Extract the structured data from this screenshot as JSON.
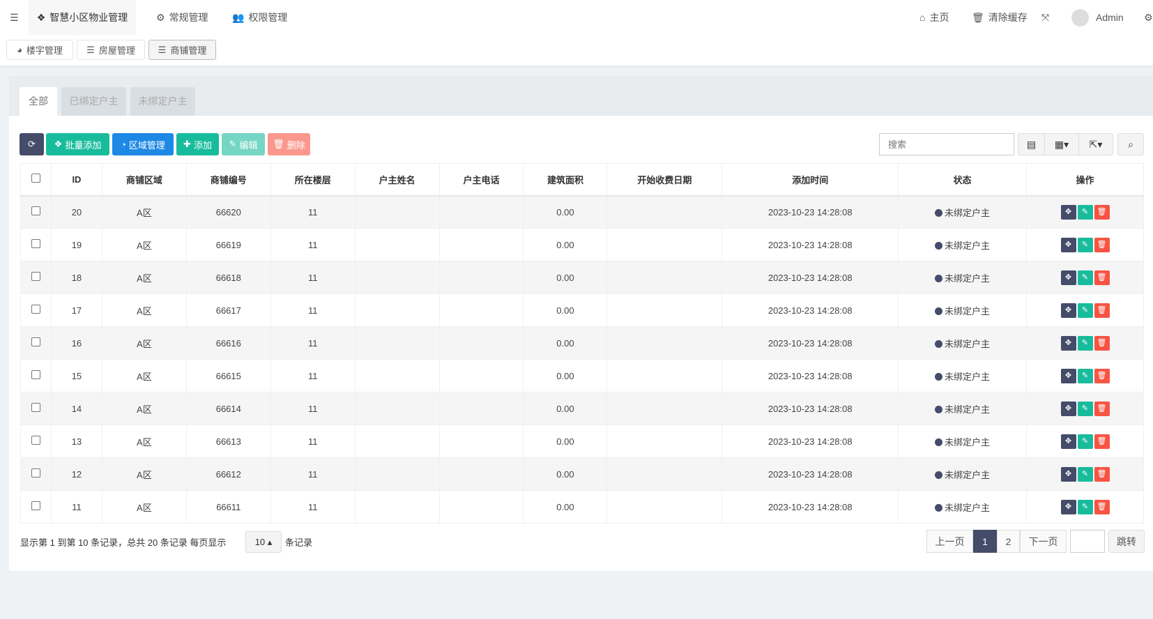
{
  "topnav": {
    "brand": "智慧小区物业管理",
    "items": [
      "常规管理",
      "权限管理"
    ],
    "home": "主页",
    "clear_cache": "清除缓存",
    "user": "Admin"
  },
  "subtabs": [
    "楼宇管理",
    "房屋管理",
    "商铺管理"
  ],
  "filter_tabs": [
    "全部",
    "已绑定户主",
    "未绑定户主"
  ],
  "toolbar": {
    "batch_add": "批量添加",
    "area_manage": "区域管理",
    "add": "添加",
    "edit": "编辑",
    "delete": "删除",
    "search_placeholder": "搜索"
  },
  "colors": {
    "primary": "#444c69",
    "success": "#18bc9c",
    "info": "#1e88e5",
    "danger": "#f75444"
  },
  "table": {
    "headers": [
      "ID",
      "商铺区域",
      "商铺编号",
      "所在楼层",
      "户主姓名",
      "户主电话",
      "建筑面积",
      "开始收费日期",
      "添加时间",
      "状态",
      "操作"
    ],
    "rows": [
      {
        "id": "20",
        "area": "A区",
        "code": "66620",
        "floor": "11",
        "owner": "",
        "phone": "",
        "size": "0.00",
        "start": "",
        "time": "2023-10-23 14:28:08",
        "status": "未绑定户主"
      },
      {
        "id": "19",
        "area": "A区",
        "code": "66619",
        "floor": "11",
        "owner": "",
        "phone": "",
        "size": "0.00",
        "start": "",
        "time": "2023-10-23 14:28:08",
        "status": "未绑定户主"
      },
      {
        "id": "18",
        "area": "A区",
        "code": "66618",
        "floor": "11",
        "owner": "",
        "phone": "",
        "size": "0.00",
        "start": "",
        "time": "2023-10-23 14:28:08",
        "status": "未绑定户主"
      },
      {
        "id": "17",
        "area": "A区",
        "code": "66617",
        "floor": "11",
        "owner": "",
        "phone": "",
        "size": "0.00",
        "start": "",
        "time": "2023-10-23 14:28:08",
        "status": "未绑定户主"
      },
      {
        "id": "16",
        "area": "A区",
        "code": "66616",
        "floor": "11",
        "owner": "",
        "phone": "",
        "size": "0.00",
        "start": "",
        "time": "2023-10-23 14:28:08",
        "status": "未绑定户主"
      },
      {
        "id": "15",
        "area": "A区",
        "code": "66615",
        "floor": "11",
        "owner": "",
        "phone": "",
        "size": "0.00",
        "start": "",
        "time": "2023-10-23 14:28:08",
        "status": "未绑定户主"
      },
      {
        "id": "14",
        "area": "A区",
        "code": "66614",
        "floor": "11",
        "owner": "",
        "phone": "",
        "size": "0.00",
        "start": "",
        "time": "2023-10-23 14:28:08",
        "status": "未绑定户主"
      },
      {
        "id": "13",
        "area": "A区",
        "code": "66613",
        "floor": "11",
        "owner": "",
        "phone": "",
        "size": "0.00",
        "start": "",
        "time": "2023-10-23 14:28:08",
        "status": "未绑定户主"
      },
      {
        "id": "12",
        "area": "A区",
        "code": "66612",
        "floor": "11",
        "owner": "",
        "phone": "",
        "size": "0.00",
        "start": "",
        "time": "2023-10-23 14:28:08",
        "status": "未绑定户主"
      },
      {
        "id": "11",
        "area": "A区",
        "code": "66611",
        "floor": "11",
        "owner": "",
        "phone": "",
        "size": "0.00",
        "start": "",
        "time": "2023-10-23 14:28:08",
        "status": "未绑定户主"
      }
    ]
  },
  "footer": {
    "summary": "显示第 1 到第 10 条记录，总共 20 条记录 每页显示",
    "page_size": "10",
    "suffix": "条记录"
  },
  "pagination": {
    "prev": "上一页",
    "pages": [
      "1",
      "2"
    ],
    "current": "1",
    "next": "下一页",
    "jump": "跳转"
  }
}
